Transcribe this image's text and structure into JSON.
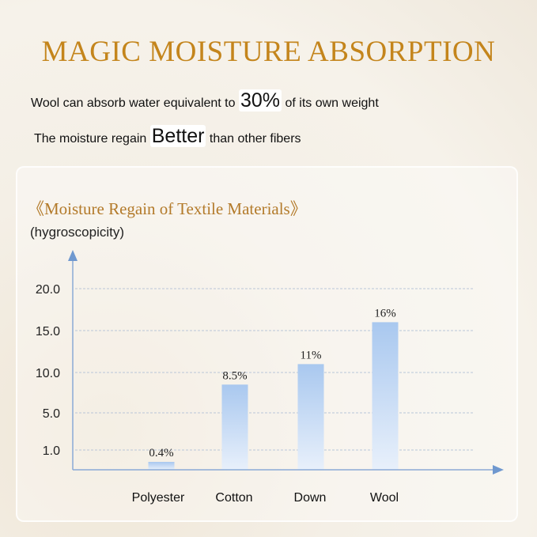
{
  "header": {
    "title": "MAGIC MOISTURE ABSORPTION",
    "line1_before": "Wool can absorb water equivalent to",
    "line1_highlight": "30%",
    "line1_after": "of its own weight",
    "line2_before": "The moisture regain",
    "line2_highlight": "Better",
    "line2_after": "than other fibers"
  },
  "chart_data": {
    "type": "bar",
    "title": "《Moisture Regain of Textile Materials》",
    "ylabel": "(hygroscopicity)",
    "xlabel": "",
    "categories": [
      "Polyester",
      "Cotton",
      "Down",
      "Wool"
    ],
    "values": [
      0.4,
      8.5,
      11,
      16
    ],
    "data_labels": [
      "0.4%",
      "8.5%",
      "11%",
      "16%"
    ],
    "yticks": [
      1.0,
      5.0,
      10.0,
      15.0,
      20.0
    ],
    "ytick_labels": [
      "1.0",
      "5.0",
      "10.0",
      "15.0",
      "20.0"
    ],
    "ylim": [
      0,
      20
    ],
    "grid": true,
    "colors": {
      "bar_top": "#a9c8ef",
      "bar_bottom": "#e8f0fb",
      "axis": "#6f98cf",
      "title": "#b37a2a",
      "heading": "#c4851c"
    }
  }
}
